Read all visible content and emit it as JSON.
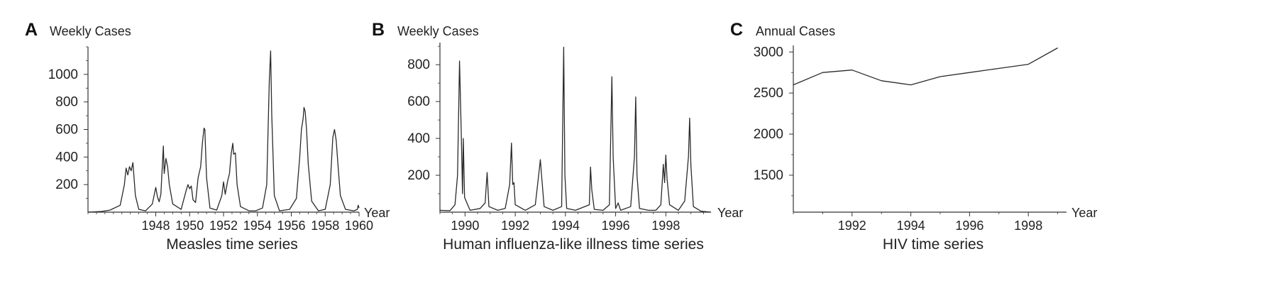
{
  "chart_data": [
    {
      "type": "line",
      "panel_label": "A",
      "ylabel": "Weekly Cases",
      "xlabel": "Measles time series",
      "x_axis_label": "Year",
      "xlim": [
        1944.0,
        1960.0
      ],
      "ylim": [
        0,
        1200
      ],
      "x_ticks": [
        1948,
        1950,
        1952,
        1954,
        1956,
        1958,
        1960
      ],
      "y_ticks": [
        200,
        400,
        600,
        800,
        1000
      ],
      "series": [
        {
          "name": "",
          "points": [
            [
              1944.0,
              0
            ],
            [
              1944.8,
              5
            ],
            [
              1945.3,
              15
            ],
            [
              1945.9,
              50
            ],
            [
              1946.15,
              200
            ],
            [
              1946.25,
              320
            ],
            [
              1946.35,
              270
            ],
            [
              1946.45,
              330
            ],
            [
              1946.55,
              300
            ],
            [
              1946.65,
              360
            ],
            [
              1946.8,
              120
            ],
            [
              1947.0,
              20
            ],
            [
              1947.4,
              10
            ],
            [
              1947.8,
              60
            ],
            [
              1948.0,
              180
            ],
            [
              1948.1,
              110
            ],
            [
              1948.2,
              75
            ],
            [
              1948.3,
              130
            ],
            [
              1948.45,
              480
            ],
            [
              1948.5,
              280
            ],
            [
              1948.6,
              390
            ],
            [
              1948.7,
              330
            ],
            [
              1948.8,
              200
            ],
            [
              1949.0,
              60
            ],
            [
              1949.5,
              20
            ],
            [
              1949.8,
              160
            ],
            [
              1949.9,
              200
            ],
            [
              1950.0,
              170
            ],
            [
              1950.1,
              190
            ],
            [
              1950.2,
              90
            ],
            [
              1950.35,
              70
            ],
            [
              1950.5,
              250
            ],
            [
              1950.65,
              330
            ],
            [
              1950.75,
              500
            ],
            [
              1950.85,
              610
            ],
            [
              1950.9,
              600
            ],
            [
              1951.0,
              250
            ],
            [
              1951.2,
              30
            ],
            [
              1951.6,
              15
            ],
            [
              1951.9,
              120
            ],
            [
              1952.0,
              220
            ],
            [
              1952.1,
              130
            ],
            [
              1952.25,
              230
            ],
            [
              1952.35,
              280
            ],
            [
              1952.45,
              420
            ],
            [
              1952.55,
              500
            ],
            [
              1952.6,
              420
            ],
            [
              1952.7,
              430
            ],
            [
              1952.8,
              200
            ],
            [
              1953.0,
              40
            ],
            [
              1953.5,
              10
            ],
            [
              1953.9,
              10
            ],
            [
              1954.3,
              30
            ],
            [
              1954.55,
              200
            ],
            [
              1954.7,
              950
            ],
            [
              1954.78,
              1170
            ],
            [
              1954.85,
              700
            ],
            [
              1955.0,
              120
            ],
            [
              1955.3,
              10
            ],
            [
              1955.9,
              20
            ],
            [
              1956.3,
              100
            ],
            [
              1956.5,
              400
            ],
            [
              1956.6,
              600
            ],
            [
              1956.7,
              680
            ],
            [
              1956.75,
              760
            ],
            [
              1956.82,
              730
            ],
            [
              1956.9,
              600
            ],
            [
              1957.0,
              350
            ],
            [
              1957.2,
              80
            ],
            [
              1957.6,
              10
            ],
            [
              1958.0,
              20
            ],
            [
              1958.3,
              200
            ],
            [
              1958.45,
              540
            ],
            [
              1958.55,
              600
            ],
            [
              1958.65,
              520
            ],
            [
              1958.75,
              350
            ],
            [
              1958.9,
              120
            ],
            [
              1959.2,
              20
            ],
            [
              1959.7,
              10
            ],
            [
              1959.9,
              20
            ],
            [
              1959.95,
              50
            ],
            [
              1960.0,
              30
            ]
          ]
        }
      ]
    },
    {
      "type": "line",
      "panel_label": "B",
      "ylabel": "Weekly Cases",
      "xlabel": "Human influenza-like illness time series",
      "x_axis_label": "Year",
      "xlim": [
        1989.0,
        1999.8
      ],
      "ylim": [
        0,
        920
      ],
      "x_ticks": [
        1990,
        1992,
        1994,
        1996,
        1998
      ],
      "y_ticks": [
        200,
        400,
        600,
        800
      ],
      "series": [
        {
          "name": "",
          "points": [
            [
              1989.0,
              10
            ],
            [
              1989.4,
              8
            ],
            [
              1989.6,
              40
            ],
            [
              1989.7,
              200
            ],
            [
              1989.78,
              820
            ],
            [
              1989.85,
              420
            ],
            [
              1989.9,
              100
            ],
            [
              1989.93,
              400
            ],
            [
              1989.98,
              80
            ],
            [
              1990.2,
              10
            ],
            [
              1990.6,
              20
            ],
            [
              1990.8,
              50
            ],
            [
              1990.88,
              215
            ],
            [
              1990.95,
              30
            ],
            [
              1991.3,
              10
            ],
            [
              1991.6,
              20
            ],
            [
              1991.78,
              150
            ],
            [
              1991.85,
              375
            ],
            [
              1991.9,
              150
            ],
            [
              1991.95,
              160
            ],
            [
              1992.0,
              40
            ],
            [
              1992.4,
              10
            ],
            [
              1992.8,
              40
            ],
            [
              1992.95,
              220
            ],
            [
              1993.0,
              285
            ],
            [
              1993.05,
              200
            ],
            [
              1993.15,
              30
            ],
            [
              1993.5,
              10
            ],
            [
              1993.85,
              30
            ],
            [
              1993.93,
              895
            ],
            [
              1993.98,
              200
            ],
            [
              1994.05,
              20
            ],
            [
              1994.4,
              10
            ],
            [
              1994.95,
              40
            ],
            [
              1995.0,
              245
            ],
            [
              1995.05,
              120
            ],
            [
              1995.15,
              15
            ],
            [
              1995.5,
              10
            ],
            [
              1995.75,
              40
            ],
            [
              1995.85,
              735
            ],
            [
              1995.9,
              300
            ],
            [
              1996.0,
              20
            ],
            [
              1996.1,
              50
            ],
            [
              1996.2,
              10
            ],
            [
              1996.6,
              30
            ],
            [
              1996.75,
              300
            ],
            [
              1996.8,
              625
            ],
            [
              1996.85,
              200
            ],
            [
              1996.95,
              20
            ],
            [
              1997.3,
              10
            ],
            [
              1997.6,
              10
            ],
            [
              1997.8,
              40
            ],
            [
              1997.9,
              260
            ],
            [
              1997.95,
              160
            ],
            [
              1998.0,
              310
            ],
            [
              1998.05,
              180
            ],
            [
              1998.15,
              40
            ],
            [
              1998.5,
              10
            ],
            [
              1998.75,
              60
            ],
            [
              1998.9,
              300
            ],
            [
              1998.95,
              510
            ],
            [
              1999.0,
              250
            ],
            [
              1999.1,
              30
            ],
            [
              1999.4,
              5
            ],
            [
              1999.8,
              0
            ]
          ]
        }
      ]
    },
    {
      "type": "line",
      "panel_label": "C",
      "ylabel": "Annual Cases",
      "xlabel": "HIV time series",
      "x_axis_label": "Year",
      "xlim": [
        1990,
        1999.3
      ],
      "ylim": [
        1050,
        3080
      ],
      "x_ticks": [
        1992,
        1994,
        1996,
        1998
      ],
      "y_ticks": [
        1500,
        2000,
        2500,
        3000
      ],
      "series": [
        {
          "name": "",
          "points": [
            [
              1990,
              2600
            ],
            [
              1991,
              2750
            ],
            [
              1992,
              2780
            ],
            [
              1993,
              2650
            ],
            [
              1994,
              2600
            ],
            [
              1995,
              2700
            ],
            [
              1996,
              2750
            ],
            [
              1997,
              2800
            ],
            [
              1998,
              2850
            ],
            [
              1999,
              3050
            ]
          ]
        }
      ]
    }
  ]
}
